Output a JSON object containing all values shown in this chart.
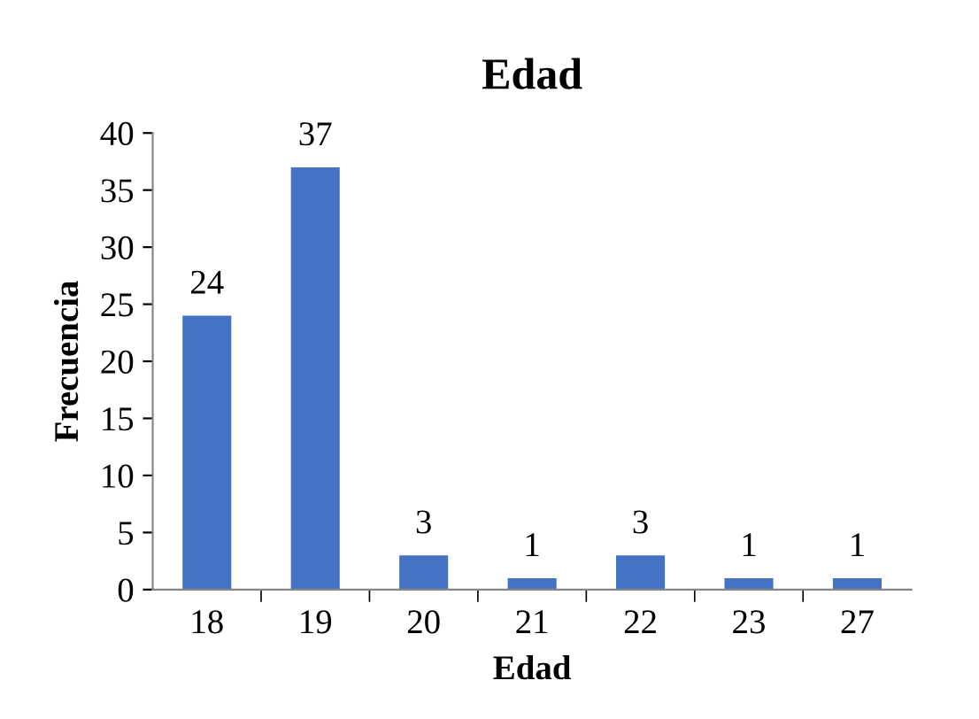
{
  "chart_data": {
    "type": "bar",
    "title": "Edad",
    "xlabel": "Edad",
    "ylabel": "Frecuencia",
    "categories": [
      "18",
      "19",
      "20",
      "21",
      "22",
      "23",
      "27"
    ],
    "values": [
      24,
      37,
      3,
      1,
      3,
      1,
      1
    ],
    "color": "#4472c4",
    "ylim": [
      0,
      40
    ],
    "yticks": [
      0,
      5,
      10,
      15,
      20,
      25,
      30,
      35,
      40
    ],
    "grid": false,
    "data_labels": true
  }
}
